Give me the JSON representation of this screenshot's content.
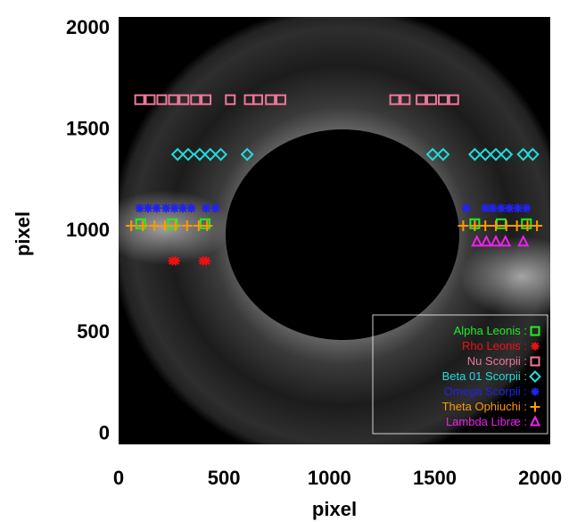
{
  "chart_data": {
    "type": "scatter",
    "xlabel": "pixel",
    "ylabel": "pixel",
    "xlim": [
      0,
      2048
    ],
    "ylim": [
      -60,
      2048
    ],
    "xticks": [
      "0",
      "500",
      "1000",
      "1500",
      "2000"
    ],
    "yticks": [
      "0",
      "500",
      "1000",
      "1500",
      "2000"
    ],
    "xtick_values": [
      0,
      500,
      1000,
      1500,
      2000
    ],
    "ytick_values": [
      0,
      500,
      1000,
      1500,
      2000
    ],
    "legend_position": "bottom-right",
    "series": [
      {
        "name": "Alpha Leonis :",
        "color": "#22ee22",
        "marker": "square",
        "points": [
          [
            105,
            1028
          ],
          [
            255,
            1028
          ],
          [
            410,
            1028
          ],
          [
            1690,
            1028
          ],
          [
            1815,
            1028
          ],
          [
            1935,
            1028
          ]
        ]
      },
      {
        "name": "Rho Leonis :",
        "color": "#ee1111",
        "marker": "asterisk",
        "points": [
          [
            255,
            845
          ],
          [
            270,
            845
          ],
          [
            400,
            845
          ],
          [
            415,
            845
          ]
        ]
      },
      {
        "name": "Nu Scorpii :",
        "color": "#ee7799",
        "marker": "square",
        "points": [
          [
            100,
            1640
          ],
          [
            150,
            1640
          ],
          [
            205,
            1640
          ],
          [
            260,
            1640
          ],
          [
            310,
            1640
          ],
          [
            365,
            1640
          ],
          [
            415,
            1640
          ],
          [
            530,
            1640
          ],
          [
            620,
            1640
          ],
          [
            660,
            1640
          ],
          [
            720,
            1640
          ],
          [
            770,
            1640
          ],
          [
            1310,
            1640
          ],
          [
            1360,
            1640
          ],
          [
            1435,
            1640
          ],
          [
            1485,
            1640
          ],
          [
            1540,
            1640
          ],
          [
            1590,
            1640
          ]
        ]
      },
      {
        "name": "Beta 01 Scorpii :",
        "color": "#22dddd",
        "marker": "diamond",
        "points": [
          [
            280,
            1370
          ],
          [
            330,
            1370
          ],
          [
            385,
            1370
          ],
          [
            435,
            1370
          ],
          [
            485,
            1370
          ],
          [
            610,
            1370
          ],
          [
            1490,
            1370
          ],
          [
            1540,
            1370
          ],
          [
            1690,
            1370
          ],
          [
            1740,
            1370
          ],
          [
            1790,
            1370
          ],
          [
            1840,
            1370
          ],
          [
            1920,
            1370
          ],
          [
            1965,
            1370
          ]
        ]
      },
      {
        "name": "Omega Scorpii :",
        "color": "#2222ee",
        "marker": "asterisk",
        "points": [
          [
            100,
            1105
          ],
          [
            140,
            1105
          ],
          [
            180,
            1105
          ],
          [
            225,
            1105
          ],
          [
            265,
            1105
          ],
          [
            305,
            1105
          ],
          [
            345,
            1105
          ],
          [
            415,
            1105
          ],
          [
            460,
            1105
          ],
          [
            1650,
            1105
          ],
          [
            1740,
            1105
          ],
          [
            1775,
            1105
          ],
          [
            1815,
            1105
          ],
          [
            1855,
            1105
          ],
          [
            1895,
            1105
          ],
          [
            1935,
            1105
          ]
        ]
      },
      {
        "name": "Theta Ophiuchi :",
        "color": "#ff9900",
        "marker": "plus",
        "points": [
          [
            60,
            1018
          ],
          [
            115,
            1018
          ],
          [
            170,
            1018
          ],
          [
            220,
            1018
          ],
          [
            270,
            1018
          ],
          [
            325,
            1018
          ],
          [
            380,
            1018
          ],
          [
            420,
            1018
          ],
          [
            1635,
            1018
          ],
          [
            1690,
            1018
          ],
          [
            1740,
            1018
          ],
          [
            1790,
            1018
          ],
          [
            1840,
            1018
          ],
          [
            1890,
            1018
          ],
          [
            1940,
            1018
          ],
          [
            1985,
            1018
          ]
        ]
      },
      {
        "name": "Lambda Libræ :",
        "color": "#ee22ee",
        "marker": "triangle",
        "points": [
          [
            1700,
            938
          ],
          [
            1745,
            938
          ],
          [
            1790,
            938
          ],
          [
            1835,
            938
          ],
          [
            1920,
            938
          ]
        ]
      }
    ]
  }
}
